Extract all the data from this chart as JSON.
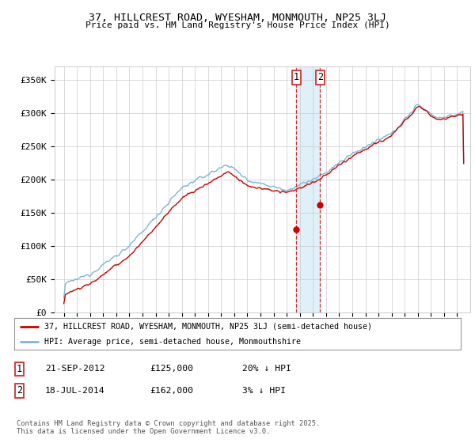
{
  "title": "37, HILLCREST ROAD, WYESHAM, MONMOUTH, NP25 3LJ",
  "subtitle": "Price paid vs. HM Land Registry's House Price Index (HPI)",
  "ylim": [
    0,
    370000
  ],
  "yticks": [
    0,
    50000,
    100000,
    150000,
    200000,
    250000,
    300000,
    350000
  ],
  "ytick_labels": [
    "£0",
    "£50K",
    "£100K",
    "£150K",
    "£200K",
    "£250K",
    "£300K",
    "£350K"
  ],
  "hpi_color": "#7ab8d9",
  "price_color": "#cc0000",
  "shade_color": "#daeef8",
  "vline_color": "#cc3333",
  "transaction1_date": 2012.73,
  "transaction1_price": 125000,
  "transaction1_label": "1",
  "transaction2_date": 2014.54,
  "transaction2_price": 162000,
  "transaction2_label": "2",
  "legend_line1": "37, HILLCREST ROAD, WYESHAM, MONMOUTH, NP25 3LJ (semi-detached house)",
  "legend_line2": "HPI: Average price, semi-detached house, Monmouthshire",
  "table_row1": [
    "1",
    "21-SEP-2012",
    "£125,000",
    "20% ↓ HPI"
  ],
  "table_row2": [
    "2",
    "18-JUL-2014",
    "£162,000",
    "3% ↓ HPI"
  ],
  "footnote": "Contains HM Land Registry data © Crown copyright and database right 2025.\nThis data is licensed under the Open Government Licence v3.0.",
  "background_color": "#ffffff",
  "grid_color": "#cccccc",
  "xlim_left": 1994.3,
  "xlim_right": 2026.0
}
